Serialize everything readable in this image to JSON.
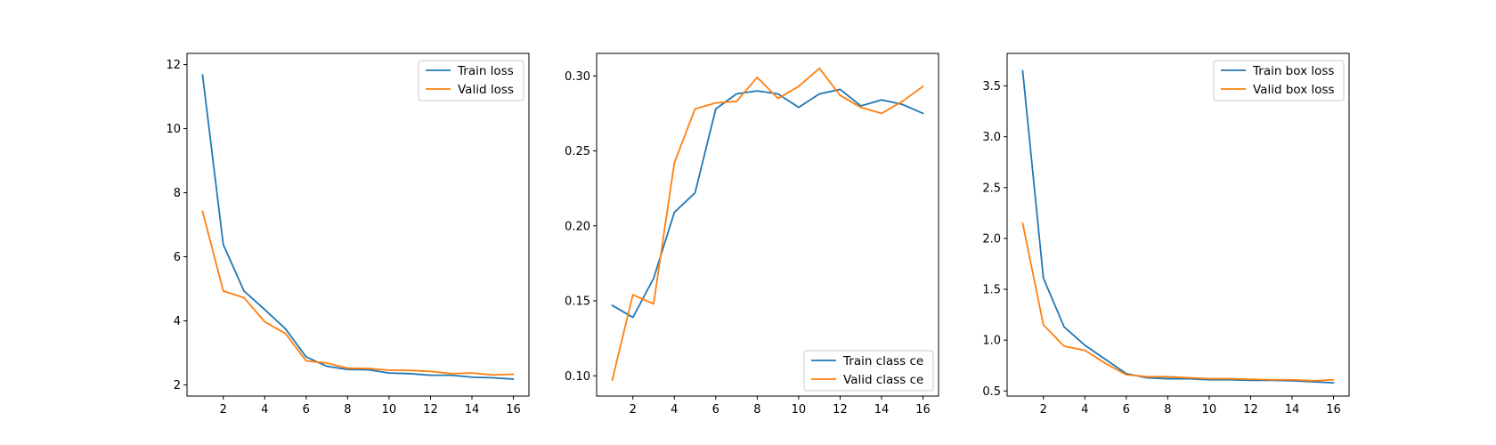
{
  "colors": {
    "train": "#1f77b4",
    "valid": "#ff7f0e"
  },
  "chart_data": [
    {
      "type": "line",
      "title": "",
      "xlabel": "",
      "ylabel": "",
      "xlim": [
        0.25,
        16.75
      ],
      "ylim": [
        1.65,
        12.35
      ],
      "xticks": [
        2,
        4,
        6,
        8,
        10,
        12,
        14,
        16
      ],
      "yticks": [
        2,
        4,
        6,
        8,
        10,
        12
      ],
      "ytick_labels": [
        "2",
        "4",
        "6",
        "8",
        "10",
        "12"
      ],
      "grid": false,
      "legend_position": "top-right",
      "x": [
        1,
        2,
        3,
        4,
        5,
        6,
        7,
        8,
        9,
        10,
        11,
        12,
        13,
        14,
        15,
        16
      ],
      "series": [
        {
          "name": "Train loss",
          "color": "#1f77b4",
          "values": [
            11.68,
            6.38,
            4.93,
            4.35,
            3.75,
            2.87,
            2.58,
            2.48,
            2.47,
            2.37,
            2.35,
            2.3,
            2.3,
            2.24,
            2.22,
            2.18
          ]
        },
        {
          "name": "Valid loss",
          "color": "#ff7f0e",
          "values": [
            7.42,
            4.93,
            4.72,
            3.97,
            3.6,
            2.75,
            2.68,
            2.52,
            2.51,
            2.46,
            2.45,
            2.42,
            2.35,
            2.37,
            2.31,
            2.33
          ]
        }
      ]
    },
    {
      "type": "line",
      "title": "",
      "xlabel": "",
      "ylabel": "",
      "xlim": [
        0.25,
        16.75
      ],
      "ylim": [
        0.0865,
        0.315
      ],
      "xticks": [
        2,
        4,
        6,
        8,
        10,
        12,
        14,
        16
      ],
      "yticks": [
        0.1,
        0.15,
        0.2,
        0.25,
        0.3
      ],
      "ytick_labels": [
        "0.10",
        "0.15",
        "0.20",
        "0.25",
        "0.30"
      ],
      "grid": false,
      "legend_position": "bottom-right",
      "x": [
        1,
        2,
        3,
        4,
        5,
        6,
        7,
        8,
        9,
        10,
        11,
        12,
        13,
        14,
        15,
        16
      ],
      "series": [
        {
          "name": "Train class ce",
          "color": "#1f77b4",
          "values": [
            0.147,
            0.139,
            0.165,
            0.209,
            0.222,
            0.278,
            0.288,
            0.29,
            0.288,
            0.279,
            0.288,
            0.291,
            0.28,
            0.284,
            0.281,
            0.275
          ]
        },
        {
          "name": "Valid class ce",
          "color": "#ff7f0e",
          "values": [
            0.097,
            0.154,
            0.148,
            0.242,
            0.278,
            0.282,
            0.283,
            0.299,
            0.285,
            0.293,
            0.305,
            0.287,
            0.279,
            0.275,
            0.283,
            0.293
          ]
        }
      ]
    },
    {
      "type": "line",
      "title": "",
      "xlabel": "",
      "ylabel": "",
      "xlim": [
        0.25,
        16.75
      ],
      "ylim": [
        0.45,
        3.82
      ],
      "xticks": [
        2,
        4,
        6,
        8,
        10,
        12,
        14,
        16
      ],
      "yticks": [
        0.5,
        1.0,
        1.5,
        2.0,
        2.5,
        3.0,
        3.5
      ],
      "ytick_labels": [
        "0.5",
        "1.0",
        "1.5",
        "2.0",
        "2.5",
        "3.0",
        "3.5"
      ],
      "grid": false,
      "legend_position": "top-right",
      "x": [
        1,
        2,
        3,
        4,
        5,
        6,
        7,
        8,
        9,
        10,
        11,
        12,
        13,
        14,
        15,
        16
      ],
      "series": [
        {
          "name": "Train box loss",
          "color": "#1f77b4",
          "values": [
            3.65,
            1.61,
            1.13,
            0.95,
            0.81,
            0.67,
            0.63,
            0.62,
            0.62,
            0.61,
            0.61,
            0.605,
            0.605,
            0.6,
            0.59,
            0.58
          ]
        },
        {
          "name": "Valid box loss",
          "color": "#ff7f0e",
          "values": [
            2.15,
            1.15,
            0.94,
            0.9,
            0.77,
            0.66,
            0.64,
            0.64,
            0.63,
            0.62,
            0.62,
            0.615,
            0.61,
            0.61,
            0.6,
            0.61
          ]
        }
      ]
    }
  ]
}
